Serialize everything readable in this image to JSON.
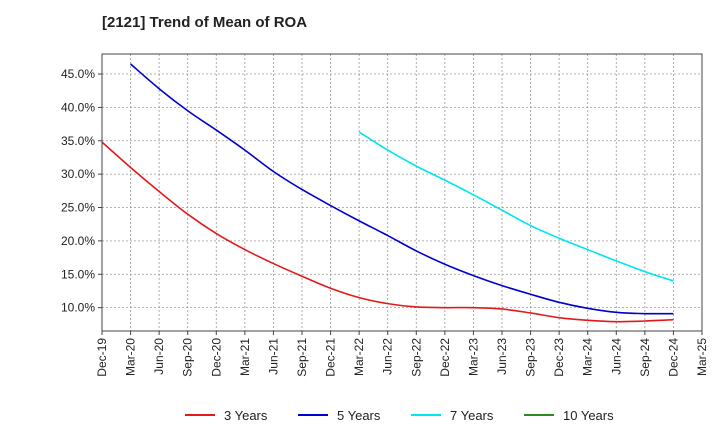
{
  "chart_data": {
    "type": "line",
    "title": "[2121]  Trend of Mean of ROA",
    "xlabel": "",
    "ylabel": "",
    "x_ticks": [
      "Dec-19",
      "Mar-20",
      "Jun-20",
      "Sep-20",
      "Dec-20",
      "Mar-21",
      "Jun-21",
      "Sep-21",
      "Dec-21",
      "Mar-22",
      "Jun-22",
      "Sep-22",
      "Dec-22",
      "Mar-23",
      "Jun-23",
      "Sep-23",
      "Dec-23",
      "Mar-24",
      "Jun-24",
      "Sep-24",
      "Dec-24",
      "Mar-25"
    ],
    "y_ticks": [
      "10.0%",
      "15.0%",
      "20.0%",
      "25.0%",
      "30.0%",
      "35.0%",
      "40.0%",
      "45.0%"
    ],
    "y_tick_values": [
      10,
      15,
      20,
      25,
      30,
      35,
      40,
      45
    ],
    "ylim": [
      6.5,
      48
    ],
    "grid": true,
    "legend_position": "bottom",
    "series": [
      {
        "name": "3 Years",
        "color": "#e31a1c",
        "x": [
          "Dec-19",
          "Mar-20",
          "Jun-20",
          "Sep-20",
          "Dec-20",
          "Mar-21",
          "Jun-21",
          "Sep-21",
          "Dec-21",
          "Mar-22",
          "Jun-22",
          "Sep-22",
          "Dec-22",
          "Mar-23",
          "Jun-23",
          "Sep-23",
          "Dec-23",
          "Mar-24",
          "Jun-24",
          "Sep-24",
          "Dec-24"
        ],
        "values": [
          34.8,
          31.0,
          27.4,
          24.0,
          21.1,
          18.7,
          16.6,
          14.7,
          12.9,
          11.5,
          10.6,
          10.1,
          10.0,
          10.0,
          9.8,
          9.2,
          8.5,
          8.1,
          7.9,
          8.0,
          8.2
        ]
      },
      {
        "name": "5 Years",
        "color": "#0000cc",
        "x": [
          "Mar-20",
          "Jun-20",
          "Sep-20",
          "Dec-20",
          "Mar-21",
          "Jun-21",
          "Sep-21",
          "Dec-21",
          "Mar-22",
          "Jun-22",
          "Sep-22",
          "Dec-22",
          "Mar-23",
          "Jun-23",
          "Sep-23",
          "Dec-23",
          "Mar-24",
          "Jun-24",
          "Sep-24",
          "Dec-24"
        ],
        "values": [
          46.5,
          42.8,
          39.5,
          36.6,
          33.6,
          30.4,
          27.7,
          25.3,
          23.0,
          20.8,
          18.5,
          16.5,
          14.8,
          13.3,
          12.0,
          10.8,
          9.9,
          9.3,
          9.1,
          9.1
        ]
      },
      {
        "name": "7 Years",
        "color": "#00e5ee",
        "x": [
          "Mar-22",
          "Jun-22",
          "Sep-22",
          "Dec-22",
          "Mar-23",
          "Jun-23",
          "Sep-23",
          "Dec-23",
          "Mar-24",
          "Jun-24",
          "Sep-24",
          "Dec-24"
        ],
        "values": [
          36.3,
          33.6,
          31.2,
          29.1,
          26.9,
          24.6,
          22.3,
          20.4,
          18.7,
          17.0,
          15.4,
          14.0
        ]
      },
      {
        "name": "10 Years",
        "color": "#2e8b22",
        "x": [],
        "values": []
      }
    ]
  }
}
